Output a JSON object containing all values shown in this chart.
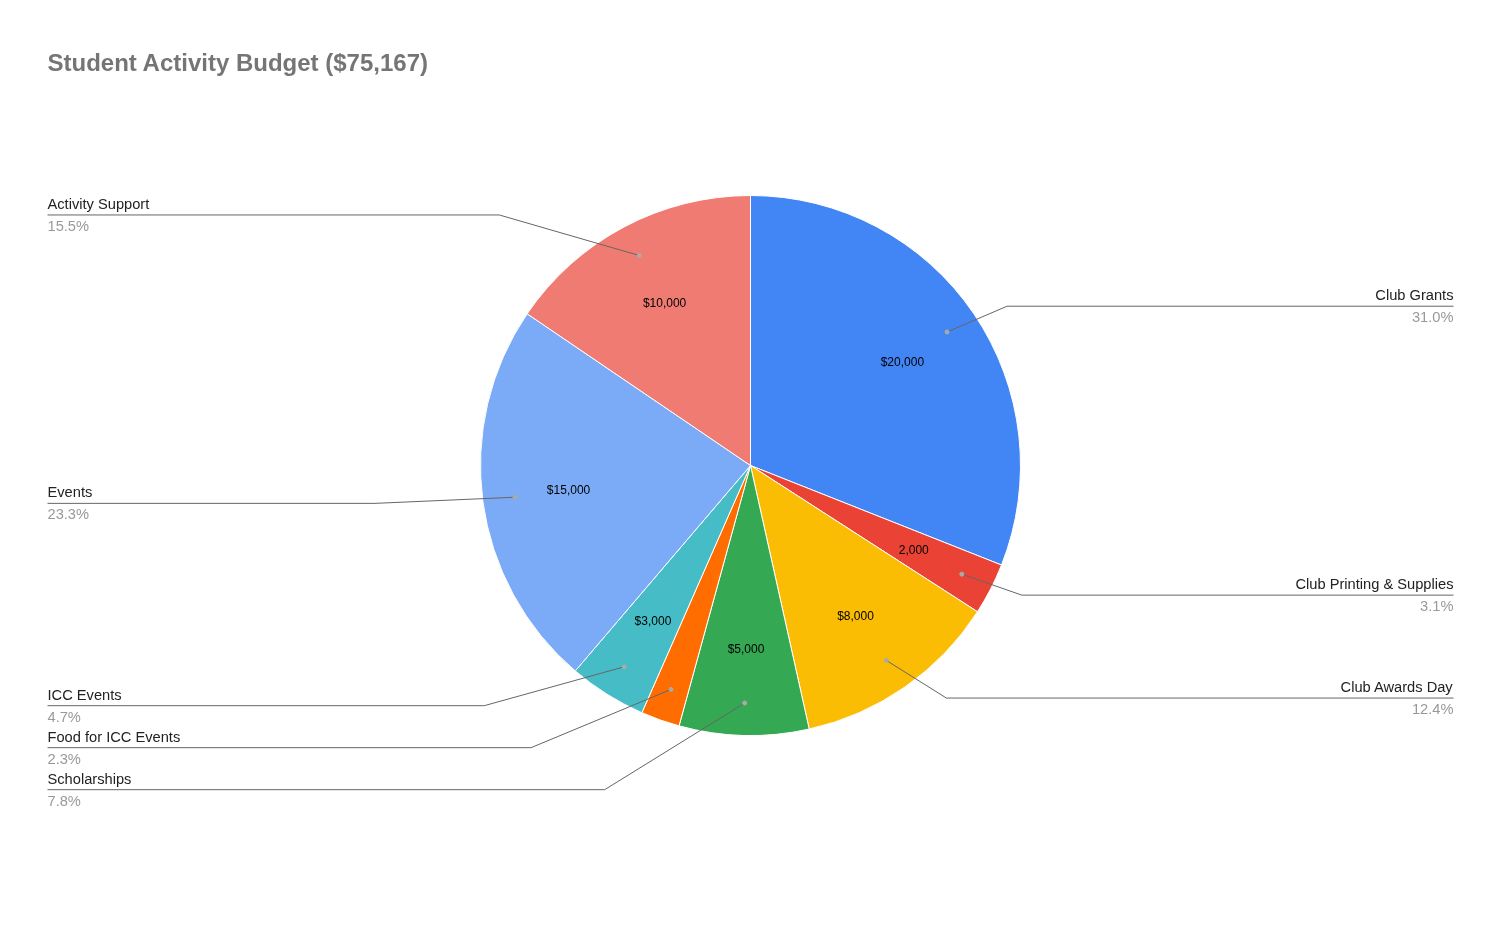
{
  "chart_data": {
    "type": "pie",
    "title": "Student Activity Budget ($75,167)",
    "categories": [
      "Club Grants",
      "Club Printing & Supplies",
      "Club Awards Day",
      "Scholarships",
      "Food for ICC Events",
      "ICC Events",
      "Events",
      "Activity Support"
    ],
    "values": [
      20000,
      2000,
      8000,
      5000,
      1500,
      3000,
      15000,
      10000
    ],
    "value_labels": [
      "$20,000",
      "2,000",
      "$8,000",
      "$5,000",
      null,
      "$3,000",
      "$15,000",
      "$10,000"
    ],
    "colors": [
      "#4285f4",
      "#ea4335",
      "#fbbc04",
      "#34a853",
      "#ff6d01",
      "#46bdc6",
      "#7baaf7",
      "#f07b72"
    ],
    "annotations": [
      "31.0%",
      "3.1%",
      "12.4%",
      "7.8%",
      "2.3%",
      "4.7%",
      "23.3%",
      "15.5%"
    ]
  }
}
